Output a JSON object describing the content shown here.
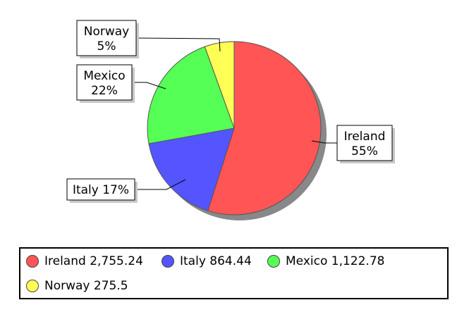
{
  "chart_data": {
    "type": "pie",
    "title": "",
    "slices": [
      {
        "name": "Ireland",
        "value": 2755.24,
        "value_label": "2,755.24",
        "percent_label": "55%",
        "color": "#ff5555"
      },
      {
        "name": "Italy",
        "value": 864.44,
        "value_label": "864.44",
        "percent_label": "17%",
        "color": "#5555ff"
      },
      {
        "name": "Mexico",
        "value": 1122.78,
        "value_label": "1,122.78",
        "percent_label": "22%",
        "color": "#55ff55"
      },
      {
        "name": "Norway",
        "value": 275.5,
        "value_label": "275.5",
        "percent_label": "5%",
        "color": "#ffff55"
      }
    ],
    "start_angle_deg": 0,
    "direction": "clockwise",
    "legend_position": "bottom"
  }
}
